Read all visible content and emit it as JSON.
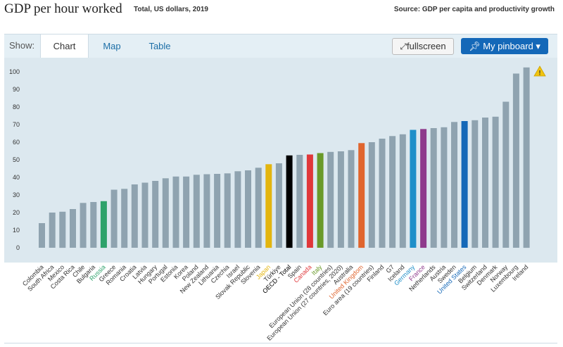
{
  "header": {
    "title": "GDP per hour worked",
    "subtitle": "Total, US dollars, 2019",
    "source": "Source: GDP per capita and productivity growth"
  },
  "toolbar": {
    "show_label": "Show:",
    "tabs": [
      "Chart",
      "Map",
      "Table"
    ],
    "fullscreen_label": "fullscreen",
    "pinboard_label": "My pinboard"
  },
  "colors": {
    "default": "#8fa3b0",
    "Russia": "#2ea26b",
    "Japan": "#e3b50e",
    "OECD - Total": "#000000",
    "Canada": "#e0373a",
    "Italy": "#6a9a2a",
    "United Kingdom": "#e0652e",
    "Germany": "#1f8fc9",
    "France": "#8e3a8c",
    "United States": "#1468b8"
  },
  "chart_data": {
    "type": "bar",
    "title": "GDP per hour worked",
    "xlabel": "",
    "ylabel": "",
    "ylim": [
      0,
      105
    ],
    "yticks": [
      0,
      10,
      20,
      30,
      40,
      50,
      60,
      70,
      80,
      90,
      100
    ],
    "categories": [
      "Colombia",
      "South Africa",
      "Mexico",
      "Costa Rica",
      "Chile",
      "Bulgaria",
      "Russia",
      "Greece",
      "Romania",
      "Croatia",
      "Latvia",
      "Hungary",
      "Portugal",
      "Estonia",
      "Korea",
      "Poland",
      "New Zealand",
      "Lithuania",
      "Czechia",
      "Israel",
      "Slovak Republic",
      "Slovenia",
      "Japan",
      "Türkiye",
      "OECD - Total",
      "Spain",
      "Canada",
      "Italy",
      "European Union (28 countries)",
      "European Union (27 countries, 2020)",
      "Australia",
      "United Kingdom",
      "Euro area (19 countries)",
      "Finland",
      "G7",
      "Iceland",
      "Germany",
      "France",
      "Netherlands",
      "Austria",
      "Sweden",
      "United States",
      "Belgium",
      "Switzerland",
      "Denmark",
      "Norway",
      "Luxembourg",
      "Ireland"
    ],
    "values": [
      14,
      20,
      20.5,
      22,
      25.5,
      26,
      26.5,
      33,
      33.5,
      36,
      37,
      38,
      39.5,
      40.5,
      40.5,
      41.5,
      41.8,
      42,
      42.3,
      43.5,
      44,
      45.5,
      47.5,
      48,
      52.5,
      52.8,
      53,
      53.8,
      54.5,
      54.8,
      55.5,
      59.5,
      60,
      62,
      63.5,
      64.5,
      67,
      67.5,
      68,
      68.5,
      71.5,
      72,
      72.5,
      74,
      74.5,
      83,
      99,
      102.5
    ],
    "warning_icon": "warning-icon"
  }
}
